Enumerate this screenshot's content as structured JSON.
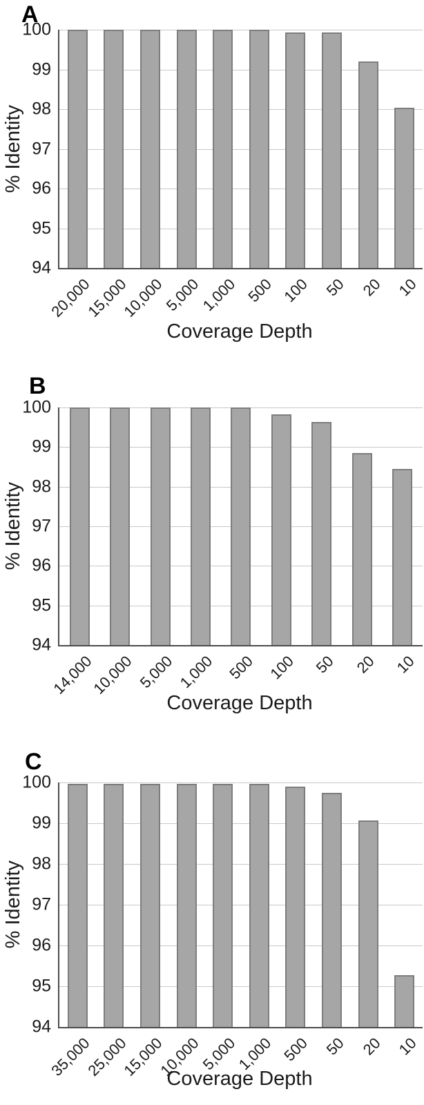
{
  "figure": {
    "type": "multi-panel-bar-figure",
    "panel_count": 3,
    "shared_x_axis_title": "Coverage Depth",
    "shared_y_axis_title": "% Identity",
    "colors": {
      "bar_fill": "#a6a6a6",
      "bar_border": "#7d7d7d",
      "gridline": "#c8c8c8",
      "axis": "#4a4a4a",
      "text": "#1a1a1a",
      "background": "#ffffff"
    }
  },
  "chart_data": [
    {
      "type": "bar",
      "panel_label": "A",
      "title": "",
      "xlabel": "Coverage Depth",
      "ylabel": "% Identity",
      "ylim": [
        94,
        100
      ],
      "ytick_step": 1,
      "yticks": [
        94,
        95,
        96,
        97,
        98,
        99,
        100
      ],
      "grid": true,
      "legend": false,
      "x_tick_rotation_deg": 45,
      "categories": [
        "20,000",
        "15,000",
        "10,000",
        "5,000",
        "1,000",
        "500",
        "100",
        "50",
        "20",
        "10"
      ],
      "values": [
        100,
        100,
        100,
        100,
        100,
        100,
        99.93,
        99.93,
        99.2,
        98.03
      ]
    },
    {
      "type": "bar",
      "panel_label": "B",
      "title": "",
      "xlabel": "Coverage Depth",
      "ylabel": "% Identity",
      "ylim": [
        94,
        100
      ],
      "ytick_step": 1,
      "yticks": [
        94,
        95,
        96,
        97,
        98,
        99,
        100
      ],
      "grid": true,
      "legend": false,
      "x_tick_rotation_deg": 45,
      "categories": [
        "14,000",
        "10,000",
        "5,000",
        "1,000",
        "500",
        "100",
        "50",
        "20",
        "10"
      ],
      "values": [
        100,
        100,
        100,
        100,
        100,
        99.82,
        99.63,
        98.85,
        98.45
      ]
    },
    {
      "type": "bar",
      "panel_label": "C",
      "title": "",
      "xlabel": "Coverage Depth",
      "ylabel": "% Identity",
      "ylim": [
        94,
        100
      ],
      "ytick_step": 1,
      "yticks": [
        94,
        95,
        96,
        97,
        98,
        99,
        100
      ],
      "grid": true,
      "legend": false,
      "x_tick_rotation_deg": 45,
      "categories": [
        "35,000",
        "25,000",
        "15,000",
        "10,000",
        "5,000",
        "1,000",
        "500",
        "50",
        "20",
        "10"
      ],
      "values": [
        99.97,
        99.97,
        99.97,
        99.97,
        99.97,
        99.97,
        99.9,
        99.75,
        99.07,
        95.27
      ]
    }
  ]
}
